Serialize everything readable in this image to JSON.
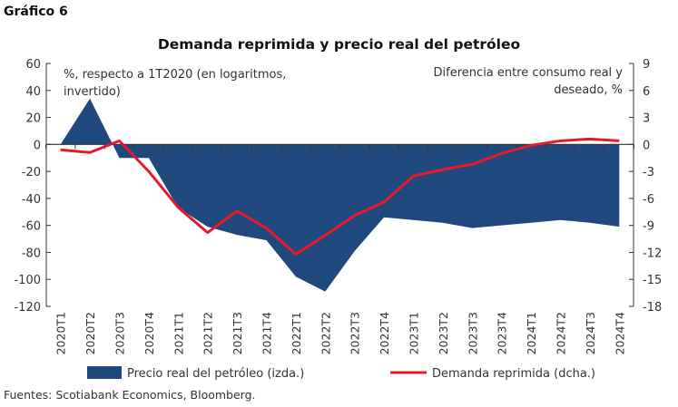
{
  "figure_label": "Gráfico 6",
  "source": "Fuentes: Scotiabank Economics, Bloomberg.",
  "colors": {
    "area": "#1f497d",
    "line": "#e8192c",
    "axis": "#333333"
  },
  "chart_data": {
    "type": "area+line",
    "title": "Demanda reprimida y precio real del petróleo",
    "left_axis_label": "%, respecto a 1T2020 (en logaritmos, invertido)",
    "left_axis_label_lines": [
      "%, respecto a 1T2020 (en logaritmos,",
      "invertido)"
    ],
    "right_axis_label": "Diferencia entre consumo real y deseado, %",
    "right_axis_label_lines": [
      "Diferencia entre consumo real y",
      "deseado, %"
    ],
    "ylim_left": [
      -120,
      60
    ],
    "yticks_left": [
      60,
      40,
      20,
      0,
      -20,
      -40,
      -60,
      -80,
      -100,
      -120
    ],
    "ylim_right": [
      -18,
      9
    ],
    "yticks_right": [
      9,
      6,
      3,
      0,
      -3,
      -6,
      -9,
      -12,
      -15,
      -18
    ],
    "grid": false,
    "legend_placement": "bottom",
    "categories": [
      "2020T1",
      "2020T2",
      "2020T3",
      "2020T4",
      "2021T1",
      "2021T2",
      "2021T3",
      "2021T4",
      "2022T1",
      "2022T2",
      "2022T3",
      "2022T4",
      "2023T1",
      "2023T2",
      "2023T3",
      "2023T4",
      "2024T1",
      "2024T2",
      "2024T3",
      "2024T4"
    ],
    "series": [
      {
        "name": "Precio real del petróleo (izda.)",
        "type": "area",
        "axis": "left",
        "values": [
          0,
          34,
          -10,
          -10,
          -47,
          -61,
          -67,
          -71,
          -98,
          -109,
          -79,
          -54,
          -56,
          -58,
          -62,
          -60,
          -58,
          -56,
          -58,
          -61
        ]
      },
      {
        "name": "Demanda reprimida (dcha.)",
        "type": "line",
        "axis": "right",
        "values": [
          -0.6,
          -0.9,
          0.4,
          -3.0,
          -7.0,
          -9.8,
          -7.4,
          -9.3,
          -12.2,
          -10.1,
          -7.9,
          -6.4,
          -3.5,
          -2.8,
          -2.2,
          -1.0,
          -0.1,
          0.4,
          0.6,
          0.4
        ]
      }
    ]
  }
}
